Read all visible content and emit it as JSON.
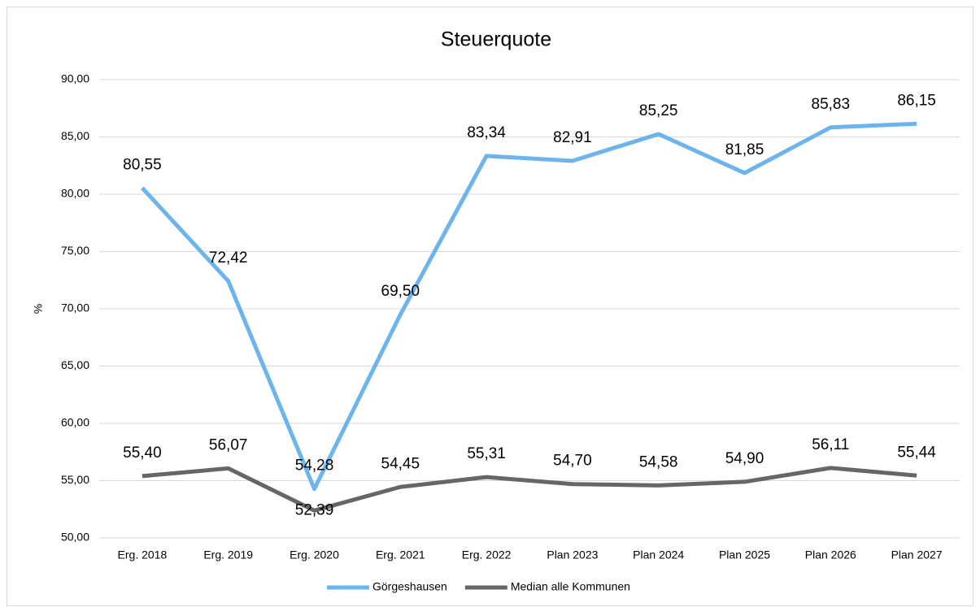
{
  "chart_data": {
    "type": "line",
    "title": "Steuerquote",
    "y_label": "%",
    "categories": [
      "Erg. 2018",
      "Erg. 2019",
      "Erg. 2020",
      "Erg. 2021",
      "Erg. 2022",
      "Plan 2023",
      "Plan 2024",
      "Plan 2025",
      "Plan 2026",
      "Plan 2027"
    ],
    "series": [
      {
        "name": "Görgeshausen",
        "color": "#6cb4eb",
        "values": [
          80.55,
          72.42,
          54.28,
          69.5,
          83.34,
          82.91,
          85.25,
          81.85,
          85.83,
          86.15
        ],
        "value_labels": [
          "80,55",
          "72,42",
          "54,28",
          "69,50",
          "83,34",
          "82,91",
          "85,25",
          "81,85",
          "85,83",
          "86,15"
        ]
      },
      {
        "name": "Median alle Kommunen",
        "color": "#666666",
        "values": [
          55.4,
          56.07,
          52.39,
          54.45,
          55.31,
          54.7,
          54.58,
          54.9,
          56.11,
          55.44
        ],
        "value_labels": [
          "55,40",
          "56,07",
          "52,39",
          "54,45",
          "55,31",
          "54,70",
          "54,58",
          "54,90",
          "56,11",
          "55,44"
        ]
      }
    ],
    "ylim": [
      50,
      90
    ],
    "yticks": [
      {
        "value": 50,
        "label": "50,00"
      },
      {
        "value": 55,
        "label": "55,00"
      },
      {
        "value": 60,
        "label": "60,00"
      },
      {
        "value": 65,
        "label": "65,00"
      },
      {
        "value": 70,
        "label": "70,00"
      },
      {
        "value": 75,
        "label": "75,00"
      },
      {
        "value": 80,
        "label": "80,00"
      },
      {
        "value": 85,
        "label": "85,00"
      },
      {
        "value": 90,
        "label": "90,00"
      }
    ],
    "grid": true,
    "legend": "bottom"
  }
}
